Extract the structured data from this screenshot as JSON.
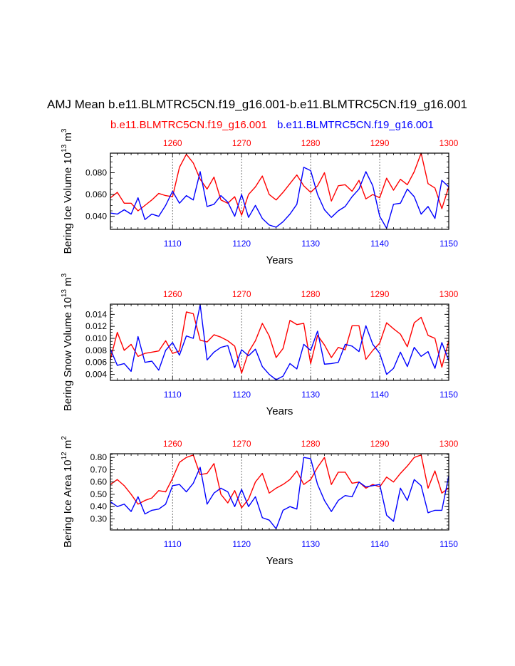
{
  "title": "AMJ Mean b.e11.BLMTRC5CN.f19_g16.001-b.e11.BLMTRC5CN.f19_g16.001",
  "legend": {
    "red_label": "b.e11.BLMTRC5CN.f19_g16.001",
    "blue_label": "b.e11.BLMTRC5CN.f19_g16.001"
  },
  "colors": {
    "red": "#ff0000",
    "blue": "#0000ff",
    "axis": "#000000",
    "grid": "#555555"
  },
  "chart_data": [
    {
      "type": "line",
      "name": "ice-volume",
      "ylabel": "Bering Ice Volume 10^13 m^3",
      "ylabel_parts": {
        "main": "Bering Ice Volume 10",
        "exp1": "13",
        "unit": " m",
        "exp2": "3"
      },
      "xlabel": "Years",
      "xlim": [
        1101,
        1150
      ],
      "top_xlim": [
        1251,
        1300
      ],
      "ylim": [
        0.028,
        0.098
      ],
      "yticks": [
        0.04,
        0.06,
        0.08
      ],
      "ytick_labels": [
        "0.040",
        "0.060",
        "0.080"
      ],
      "xticks": [
        1110,
        1120,
        1130,
        1140,
        1150
      ],
      "xtick_labels": [
        "1110",
        "1120",
        "1130",
        "1140",
        "1150"
      ],
      "top_ticks": [
        1260,
        1270,
        1280,
        1290,
        1300
      ],
      "top_tick_labels": [
        "1260",
        "1270",
        "1280",
        "1290",
        "1300"
      ],
      "grid_at": [
        1110,
        1120,
        1130,
        1140
      ],
      "series": [
        {
          "name": "b.e11.BLMTRC5CN.f19_g16.001",
          "color": "red",
          "axis": "top",
          "start": 1251,
          "values": [
            0.057,
            0.062,
            0.052,
            0.052,
            0.045,
            0.05,
            0.055,
            0.061,
            0.059,
            0.058,
            0.085,
            0.097,
            0.089,
            0.074,
            0.065,
            0.076,
            0.055,
            0.052,
            0.058,
            0.041,
            0.06,
            0.067,
            0.077,
            0.06,
            0.055,
            0.062,
            0.07,
            0.078,
            0.068,
            0.062,
            0.068,
            0.08,
            0.054,
            0.068,
            0.069,
            0.063,
            0.073,
            0.056,
            0.06,
            0.057,
            0.075,
            0.064,
            0.074,
            0.069,
            0.081,
            0.098,
            0.07,
            0.066,
            0.047,
            0.067
          ]
        },
        {
          "name": "b.e11.BLMTRC5CN.f19_g16.001",
          "color": "blue",
          "axis": "bottom",
          "start": 1101,
          "values": [
            0.043,
            0.042,
            0.046,
            0.042,
            0.057,
            0.037,
            0.042,
            0.04,
            0.05,
            0.063,
            0.052,
            0.059,
            0.055,
            0.081,
            0.049,
            0.051,
            0.059,
            0.053,
            0.04,
            0.06,
            0.039,
            0.05,
            0.038,
            0.032,
            0.03,
            0.035,
            0.042,
            0.051,
            0.085,
            0.082,
            0.06,
            0.046,
            0.039,
            0.045,
            0.049,
            0.058,
            0.065,
            0.081,
            0.068,
            0.04,
            0.029,
            0.051,
            0.052,
            0.065,
            0.058,
            0.042,
            0.049,
            0.038,
            0.073,
            0.067
          ]
        }
      ]
    },
    {
      "type": "line",
      "name": "snow-volume",
      "ylabel": "Bering Snow Volume 10^13 m^3",
      "ylabel_parts": {
        "main": "Bering Snow Volume 10",
        "exp1": "13",
        "unit": " m",
        "exp2": "3"
      },
      "xlabel": "Years",
      "xlim": [
        1101,
        1150
      ],
      "top_xlim": [
        1251,
        1300
      ],
      "ylim": [
        0.003,
        0.0157
      ],
      "yticks": [
        0.004,
        0.006,
        0.008,
        0.01,
        0.012,
        0.014
      ],
      "ytick_labels": [
        "0.004",
        "0.006",
        "0.008",
        "0.010",
        "0.012",
        "0.014"
      ],
      "xticks": [
        1110,
        1120,
        1130,
        1140,
        1150
      ],
      "xtick_labels": [
        "1110",
        "1120",
        "1130",
        "1140",
        "1150"
      ],
      "top_ticks": [
        1260,
        1270,
        1280,
        1290,
        1300
      ],
      "top_tick_labels": [
        "1260",
        "1270",
        "1280",
        "1290",
        "1300"
      ],
      "grid_at": [
        1110,
        1120,
        1130,
        1140
      ],
      "series": [
        {
          "name": "b.e11.BLMTRC5CN.f19_g16.001",
          "color": "red",
          "axis": "top",
          "start": 1251,
          "values": [
            0.0065,
            0.011,
            0.008,
            0.009,
            0.007,
            0.0075,
            0.0077,
            0.0079,
            0.0096,
            0.0075,
            0.0079,
            0.0144,
            0.0141,
            0.0097,
            0.0094,
            0.0106,
            0.0102,
            0.0096,
            0.0087,
            0.0042,
            0.0077,
            0.0096,
            0.0125,
            0.0104,
            0.0068,
            0.0083,
            0.013,
            0.0123,
            0.0125,
            0.0058,
            0.0105,
            0.0089,
            0.0068,
            0.0085,
            0.0081,
            0.0121,
            0.0121,
            0.0065,
            0.008,
            0.0092,
            0.0126,
            0.0116,
            0.0107,
            0.0086,
            0.0126,
            0.0135,
            0.0105,
            0.01,
            0.0052,
            0.0096
          ]
        },
        {
          "name": "b.e11.BLMTRC5CN.f19_g16.001",
          "color": "blue",
          "axis": "bottom",
          "start": 1101,
          "values": [
            0.0082,
            0.0055,
            0.0058,
            0.0045,
            0.0103,
            0.006,
            0.0062,
            0.0047,
            0.008,
            0.0093,
            0.0072,
            0.0104,
            0.01,
            0.0156,
            0.0064,
            0.0077,
            0.0085,
            0.0088,
            0.0051,
            0.0081,
            0.0071,
            0.0082,
            0.0053,
            0.004,
            0.0031,
            0.0037,
            0.0058,
            0.0049,
            0.009,
            0.008,
            0.0112,
            0.0057,
            0.0058,
            0.006,
            0.009,
            0.0087,
            0.0078,
            0.0121,
            0.009,
            0.0075,
            0.004,
            0.005,
            0.0077,
            0.0053,
            0.0085,
            0.007,
            0.0078,
            0.005,
            0.0093,
            0.0063
          ]
        }
      ]
    },
    {
      "type": "line",
      "name": "ice-area",
      "ylabel": "Bering Ice Area 10^12 m^2",
      "ylabel_parts": {
        "main": "Bering Ice Area 10",
        "exp1": "12",
        "unit": " m",
        "exp2": "2"
      },
      "xlabel": "Years",
      "xlim": [
        1101,
        1150
      ],
      "top_xlim": [
        1251,
        1300
      ],
      "ylim": [
        0.21,
        0.83
      ],
      "yticks": [
        0.3,
        0.4,
        0.5,
        0.6,
        0.7,
        0.8
      ],
      "ytick_labels": [
        "0.30",
        "0.40",
        "0.50",
        "0.60",
        "0.70",
        "0.80"
      ],
      "xticks": [
        1110,
        1120,
        1130,
        1140,
        1150
      ],
      "xtick_labels": [
        "1110",
        "1120",
        "1130",
        "1140",
        "1150"
      ],
      "top_ticks": [
        1260,
        1270,
        1280,
        1290,
        1300
      ],
      "top_tick_labels": [
        "1260",
        "1270",
        "1280",
        "1290",
        "1300"
      ],
      "grid_at": [
        1110,
        1120,
        1130,
        1140
      ],
      "series": [
        {
          "name": "b.e11.BLMTRC5CN.f19_g16.001",
          "color": "red",
          "axis": "top",
          "start": 1251,
          "values": [
            0.58,
            0.62,
            0.57,
            0.5,
            0.42,
            0.45,
            0.47,
            0.53,
            0.52,
            0.63,
            0.76,
            0.8,
            0.82,
            0.66,
            0.67,
            0.75,
            0.5,
            0.43,
            0.53,
            0.39,
            0.46,
            0.6,
            0.67,
            0.51,
            0.55,
            0.58,
            0.62,
            0.69,
            0.58,
            0.62,
            0.72,
            0.8,
            0.58,
            0.68,
            0.68,
            0.59,
            0.6,
            0.55,
            0.58,
            0.56,
            0.64,
            0.6,
            0.67,
            0.73,
            0.8,
            0.82,
            0.55,
            0.69,
            0.51,
            0.55
          ]
        },
        {
          "name": "b.e11.BLMTRC5CN.f19_g16.001",
          "color": "blue",
          "axis": "bottom",
          "start": 1101,
          "values": [
            0.44,
            0.4,
            0.42,
            0.36,
            0.48,
            0.34,
            0.37,
            0.38,
            0.42,
            0.57,
            0.58,
            0.52,
            0.59,
            0.72,
            0.42,
            0.51,
            0.55,
            0.52,
            0.4,
            0.54,
            0.4,
            0.48,
            0.31,
            0.29,
            0.22,
            0.37,
            0.4,
            0.38,
            0.8,
            0.79,
            0.58,
            0.45,
            0.36,
            0.45,
            0.49,
            0.48,
            0.6,
            0.56,
            0.57,
            0.58,
            0.33,
            0.28,
            0.55,
            0.45,
            0.62,
            0.57,
            0.35,
            0.37,
            0.37,
            0.65
          ]
        }
      ]
    }
  ]
}
